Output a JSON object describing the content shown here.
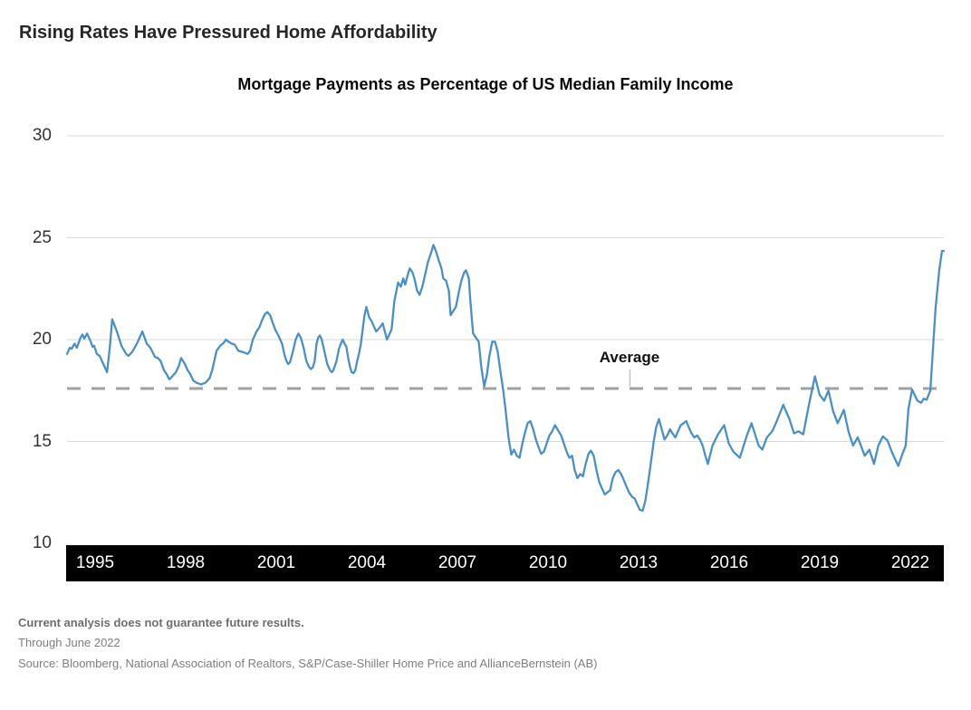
{
  "header": {
    "title": "Rising Rates Have Pressured Home Affordability"
  },
  "chart_data": {
    "type": "line",
    "title": "Mortgage Payments as Percentage of US Median Family Income",
    "xlabel": "",
    "ylabel": "",
    "legend": "none",
    "grid": "horizontal",
    "x_domain": [
      1994.0,
      2022.5
    ],
    "ylim": [
      10,
      31.5
    ],
    "y_ticks": [
      30,
      25,
      20,
      15,
      10
    ],
    "x_ticks": [
      "1995",
      "1998",
      "2001",
      "2004",
      "2007",
      "2010",
      "2013",
      "2016",
      "2019",
      "2022"
    ],
    "line_color": "#4A90C6",
    "average_line": {
      "label": "Average",
      "value": 17.6,
      "style": "dashed",
      "color": "#A1A1A1"
    },
    "series": [
      {
        "name": "Mortgage payments as % of US median family income",
        "points": [
          [
            1994.0,
            19.3
          ],
          [
            1994.09,
            19.6
          ],
          [
            1994.15,
            19.55
          ],
          [
            1994.24,
            19.8
          ],
          [
            1994.32,
            19.6
          ],
          [
            1994.44,
            20.1
          ],
          [
            1994.5,
            20.25
          ],
          [
            1994.56,
            20.05
          ],
          [
            1994.65,
            20.3
          ],
          [
            1994.77,
            19.9
          ],
          [
            1994.83,
            19.65
          ],
          [
            1994.88,
            19.7
          ],
          [
            1994.97,
            19.3
          ],
          [
            1995.06,
            19.2
          ],
          [
            1995.18,
            18.8
          ],
          [
            1995.3,
            18.4
          ],
          [
            1995.39,
            19.6
          ],
          [
            1995.47,
            21.0
          ],
          [
            1995.62,
            20.4
          ],
          [
            1995.77,
            19.7
          ],
          [
            1995.92,
            19.3
          ],
          [
            1996.0,
            19.2
          ],
          [
            1996.12,
            19.4
          ],
          [
            1996.27,
            19.8
          ],
          [
            1996.45,
            20.4
          ],
          [
            1996.59,
            19.8
          ],
          [
            1996.71,
            19.6
          ],
          [
            1996.86,
            19.15
          ],
          [
            1996.95,
            19.1
          ],
          [
            1997.04,
            18.95
          ],
          [
            1997.15,
            18.5
          ],
          [
            1997.24,
            18.3
          ],
          [
            1997.33,
            18.05
          ],
          [
            1997.45,
            18.25
          ],
          [
            1997.54,
            18.4
          ],
          [
            1997.63,
            18.7
          ],
          [
            1997.71,
            19.1
          ],
          [
            1997.83,
            18.8
          ],
          [
            1997.92,
            18.5
          ],
          [
            1998.01,
            18.3
          ],
          [
            1998.1,
            18.0
          ],
          [
            1998.19,
            17.9
          ],
          [
            1998.27,
            17.85
          ],
          [
            1998.36,
            17.8
          ],
          [
            1998.51,
            17.9
          ],
          [
            1998.63,
            18.1
          ],
          [
            1998.72,
            18.5
          ],
          [
            1998.86,
            19.45
          ],
          [
            1998.98,
            19.7
          ],
          [
            1999.1,
            19.85
          ],
          [
            1999.16,
            20.0
          ],
          [
            1999.25,
            19.9
          ],
          [
            1999.36,
            19.8
          ],
          [
            1999.45,
            19.75
          ],
          [
            1999.57,
            19.45
          ],
          [
            1999.69,
            19.4
          ],
          [
            1999.78,
            19.35
          ],
          [
            1999.87,
            19.3
          ],
          [
            1999.95,
            19.45
          ],
          [
            2000.04,
            20.0
          ],
          [
            2000.16,
            20.4
          ],
          [
            2000.25,
            20.6
          ],
          [
            2000.34,
            20.95
          ],
          [
            2000.43,
            21.25
          ],
          [
            2000.51,
            21.35
          ],
          [
            2000.6,
            21.2
          ],
          [
            2000.69,
            20.8
          ],
          [
            2000.78,
            20.45
          ],
          [
            2000.87,
            20.2
          ],
          [
            2000.99,
            19.8
          ],
          [
            2001.07,
            19.25
          ],
          [
            2001.13,
            18.95
          ],
          [
            2001.19,
            18.8
          ],
          [
            2001.25,
            18.9
          ],
          [
            2001.34,
            19.4
          ],
          [
            2001.43,
            20.0
          ],
          [
            2001.52,
            20.3
          ],
          [
            2001.6,
            20.1
          ],
          [
            2001.69,
            19.6
          ],
          [
            2001.78,
            18.95
          ],
          [
            2001.87,
            18.65
          ],
          [
            2001.93,
            18.55
          ],
          [
            2001.99,
            18.65
          ],
          [
            2002.05,
            18.95
          ],
          [
            2002.11,
            19.8
          ],
          [
            2002.16,
            20.1
          ],
          [
            2002.22,
            20.2
          ],
          [
            2002.28,
            20.0
          ],
          [
            2002.37,
            19.4
          ],
          [
            2002.46,
            18.8
          ],
          [
            2002.55,
            18.5
          ],
          [
            2002.61,
            18.4
          ],
          [
            2002.66,
            18.5
          ],
          [
            2002.75,
            18.9
          ],
          [
            2002.84,
            19.55
          ],
          [
            2002.9,
            19.8
          ],
          [
            2002.96,
            20.0
          ],
          [
            2003.02,
            19.8
          ],
          [
            2003.08,
            19.65
          ],
          [
            2003.14,
            19.1
          ],
          [
            2003.2,
            18.65
          ],
          [
            2003.25,
            18.4
          ],
          [
            2003.31,
            18.35
          ],
          [
            2003.37,
            18.5
          ],
          [
            2003.43,
            18.95
          ],
          [
            2003.49,
            19.3
          ],
          [
            2003.55,
            19.8
          ],
          [
            2003.61,
            20.5
          ],
          [
            2003.67,
            21.2
          ],
          [
            2003.73,
            21.6
          ],
          [
            2003.82,
            21.1
          ],
          [
            2003.9,
            20.9
          ],
          [
            2003.96,
            20.7
          ],
          [
            2004.05,
            20.4
          ],
          [
            2004.17,
            20.6
          ],
          [
            2004.26,
            20.8
          ],
          [
            2004.4,
            20.0
          ],
          [
            2004.55,
            20.5
          ],
          [
            2004.64,
            21.9
          ],
          [
            2004.76,
            22.8
          ],
          [
            2004.85,
            22.6
          ],
          [
            2004.93,
            23.0
          ],
          [
            2004.99,
            22.7
          ],
          [
            2005.08,
            23.2
          ],
          [
            2005.14,
            23.5
          ],
          [
            2005.23,
            23.3
          ],
          [
            2005.29,
            23.0
          ],
          [
            2005.38,
            22.4
          ],
          [
            2005.46,
            22.2
          ],
          [
            2005.55,
            22.6
          ],
          [
            2005.64,
            23.2
          ],
          [
            2005.73,
            23.8
          ],
          [
            2005.82,
            24.2
          ],
          [
            2005.91,
            24.65
          ],
          [
            2006.0,
            24.3
          ],
          [
            2006.08,
            23.9
          ],
          [
            2006.17,
            23.5
          ],
          [
            2006.23,
            23.0
          ],
          [
            2006.32,
            22.9
          ],
          [
            2006.41,
            22.4
          ],
          [
            2006.47,
            21.2
          ],
          [
            2006.55,
            21.4
          ],
          [
            2006.64,
            21.6
          ],
          [
            2006.73,
            22.3
          ],
          [
            2006.82,
            22.9
          ],
          [
            2006.91,
            23.3
          ],
          [
            2006.97,
            23.4
          ],
          [
            2007.06,
            23.0
          ],
          [
            2007.11,
            21.9
          ],
          [
            2007.2,
            20.3
          ],
          [
            2007.29,
            20.1
          ],
          [
            2007.38,
            19.9
          ],
          [
            2007.47,
            18.6
          ],
          [
            2007.56,
            17.7
          ],
          [
            2007.65,
            18.3
          ],
          [
            2007.73,
            19.2
          ],
          [
            2007.82,
            19.9
          ],
          [
            2007.91,
            19.9
          ],
          [
            2008.0,
            19.4
          ],
          [
            2008.09,
            18.4
          ],
          [
            2008.18,
            17.5
          ],
          [
            2008.26,
            16.5
          ],
          [
            2008.35,
            15.2
          ],
          [
            2008.44,
            14.35
          ],
          [
            2008.53,
            14.6
          ],
          [
            2008.62,
            14.3
          ],
          [
            2008.71,
            14.2
          ],
          [
            2008.8,
            14.9
          ],
          [
            2008.88,
            15.4
          ],
          [
            2008.97,
            15.9
          ],
          [
            2009.06,
            16.0
          ],
          [
            2009.15,
            15.6
          ],
          [
            2009.24,
            15.1
          ],
          [
            2009.33,
            14.7
          ],
          [
            2009.41,
            14.4
          ],
          [
            2009.5,
            14.5
          ],
          [
            2009.59,
            14.9
          ],
          [
            2009.68,
            15.3
          ],
          [
            2009.77,
            15.5
          ],
          [
            2009.86,
            15.8
          ],
          [
            2009.94,
            15.6
          ],
          [
            2010.06,
            15.3
          ],
          [
            2010.15,
            14.9
          ],
          [
            2010.24,
            14.5
          ],
          [
            2010.33,
            14.2
          ],
          [
            2010.42,
            14.3
          ],
          [
            2010.5,
            13.6
          ],
          [
            2010.59,
            13.2
          ],
          [
            2010.68,
            13.4
          ],
          [
            2010.77,
            13.3
          ],
          [
            2010.86,
            13.9
          ],
          [
            2010.95,
            14.4
          ],
          [
            2011.03,
            14.55
          ],
          [
            2011.12,
            14.3
          ],
          [
            2011.21,
            13.6
          ],
          [
            2011.3,
            13.0
          ],
          [
            2011.39,
            12.7
          ],
          [
            2011.48,
            12.4
          ],
          [
            2011.56,
            12.5
          ],
          [
            2011.65,
            12.6
          ],
          [
            2011.74,
            13.2
          ],
          [
            2011.83,
            13.5
          ],
          [
            2011.92,
            13.6
          ],
          [
            2012.01,
            13.4
          ],
          [
            2012.1,
            13.1
          ],
          [
            2012.18,
            12.8
          ],
          [
            2012.27,
            12.5
          ],
          [
            2012.36,
            12.3
          ],
          [
            2012.45,
            12.2
          ],
          [
            2012.54,
            11.9
          ],
          [
            2012.62,
            11.65
          ],
          [
            2012.71,
            11.6
          ],
          [
            2012.8,
            12.1
          ],
          [
            2012.89,
            13.0
          ],
          [
            2012.98,
            14.0
          ],
          [
            2013.07,
            15.0
          ],
          [
            2013.15,
            15.7
          ],
          [
            2013.24,
            16.1
          ],
          [
            2013.33,
            15.6
          ],
          [
            2013.42,
            15.1
          ],
          [
            2013.51,
            15.3
          ],
          [
            2013.6,
            15.6
          ],
          [
            2013.68,
            15.4
          ],
          [
            2013.77,
            15.2
          ],
          [
            2013.86,
            15.5
          ],
          [
            2013.95,
            15.8
          ],
          [
            2014.04,
            15.9
          ],
          [
            2014.13,
            16.0
          ],
          [
            2014.21,
            15.7
          ],
          [
            2014.3,
            15.4
          ],
          [
            2014.39,
            15.2
          ],
          [
            2014.48,
            15.3
          ],
          [
            2014.57,
            15.1
          ],
          [
            2014.66,
            14.8
          ],
          [
            2014.75,
            14.3
          ],
          [
            2014.83,
            13.9
          ],
          [
            2014.98,
            14.8
          ],
          [
            2015.16,
            15.35
          ],
          [
            2015.36,
            15.8
          ],
          [
            2015.51,
            14.9
          ],
          [
            2015.66,
            14.5
          ],
          [
            2015.87,
            14.2
          ],
          [
            2016.1,
            15.3
          ],
          [
            2016.25,
            15.9
          ],
          [
            2016.48,
            14.8
          ],
          [
            2016.6,
            14.6
          ],
          [
            2016.75,
            15.2
          ],
          [
            2016.92,
            15.5
          ],
          [
            2017.07,
            16.0
          ],
          [
            2017.28,
            16.8
          ],
          [
            2017.48,
            16.1
          ],
          [
            2017.63,
            15.4
          ],
          [
            2017.78,
            15.5
          ],
          [
            2017.93,
            15.35
          ],
          [
            2018.1,
            16.7
          ],
          [
            2018.31,
            18.2
          ],
          [
            2018.46,
            17.3
          ],
          [
            2018.61,
            17.0
          ],
          [
            2018.75,
            17.5
          ],
          [
            2018.9,
            16.5
          ],
          [
            2019.05,
            15.9
          ],
          [
            2019.25,
            16.55
          ],
          [
            2019.4,
            15.5
          ],
          [
            2019.55,
            14.8
          ],
          [
            2019.7,
            15.2
          ],
          [
            2019.78,
            14.9
          ],
          [
            2019.93,
            14.3
          ],
          [
            2020.08,
            14.6
          ],
          [
            2020.23,
            13.9
          ],
          [
            2020.37,
            14.8
          ],
          [
            2020.52,
            15.25
          ],
          [
            2020.67,
            15.05
          ],
          [
            2020.82,
            14.45
          ],
          [
            2021.02,
            13.8
          ],
          [
            2021.17,
            14.45
          ],
          [
            2021.26,
            14.8
          ],
          [
            2021.35,
            16.6
          ],
          [
            2021.47,
            17.55
          ],
          [
            2021.64,
            17.0
          ],
          [
            2021.76,
            16.9
          ],
          [
            2021.85,
            17.1
          ],
          [
            2021.94,
            17.05
          ],
          [
            2022.06,
            17.5
          ],
          [
            2022.14,
            19.4
          ],
          [
            2022.23,
            21.5
          ],
          [
            2022.35,
            23.4
          ],
          [
            2022.44,
            24.35
          ],
          [
            2022.5,
            24.35
          ]
        ]
      }
    ]
  },
  "footnotes": {
    "disclaimer": "Current analysis does not guarantee future results.",
    "as_of": "Through June 2022",
    "source": "Source: Bloomberg, National Association of Realtors, S&P/Case-Shiller Home Price and AllianceBernstein (AB)"
  }
}
